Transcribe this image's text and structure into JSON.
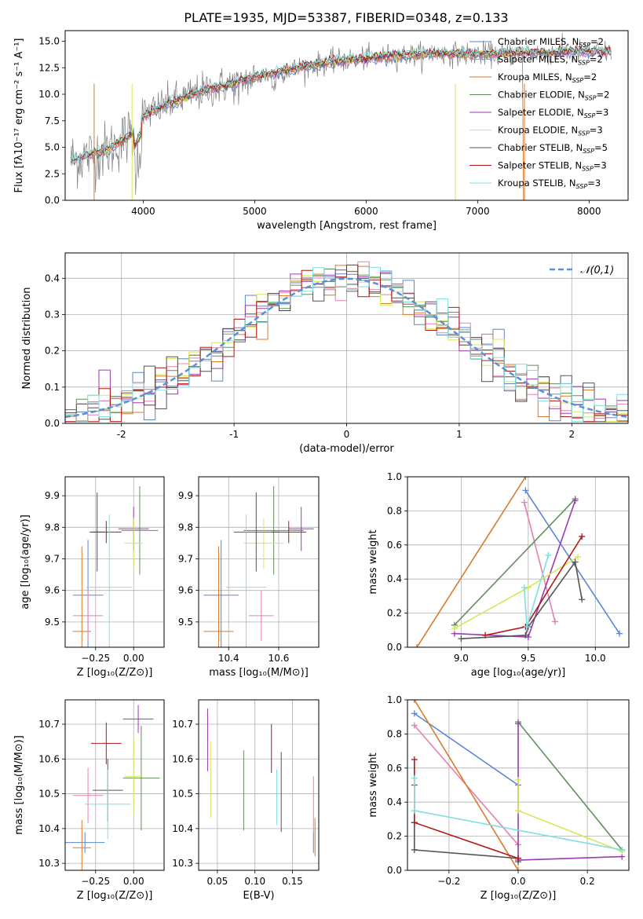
{
  "title": "PLATE=1935, MJD=53387, FIBERID=0348, z=0.133",
  "colors": {
    "Chabrier MILES": "#5b86d6",
    "Salpeter MILES": "#e87fb2",
    "Kroupa MILES": "#d97b2a",
    "Chabrier ELODIE": "#5f8f5a",
    "Salpeter ELODIE": "#9a3bb0",
    "Kroupa ELODIE": "#d4e85a",
    "Chabrier STELIB": "#555555",
    "Salpeter STELIB": "#b01818",
    "Kroupa STELIB": "#7fdede",
    "data": "#808080",
    "normal": "#5b8fd6"
  },
  "legend": [
    {
      "name": "Chabrier MILES",
      "prefix": "Chabrier MILES, N",
      "sub": "SSP",
      "suffix": "=2"
    },
    {
      "name": "Salpeter MILES",
      "prefix": "Salpeter MILES, N",
      "sub": "SSP",
      "suffix": "=2"
    },
    {
      "name": "Kroupa MILES",
      "prefix": "Kroupa MILES, N",
      "sub": "SSP",
      "suffix": "=2"
    },
    {
      "name": "Chabrier ELODIE",
      "prefix": "Chabrier ELODIE, N",
      "sub": "SSP",
      "suffix": "=2"
    },
    {
      "name": "Salpeter ELODIE",
      "prefix": "Salpeter ELODIE, N",
      "sub": "SSP",
      "suffix": "=3"
    },
    {
      "name": "Kroupa ELODIE",
      "prefix": "Kroupa ELODIE, N",
      "sub": "SSP",
      "suffix": "=3"
    },
    {
      "name": "Chabrier STELIB",
      "prefix": "Chabrier STELIB, N",
      "sub": "SSP",
      "suffix": "=5"
    },
    {
      "name": "Salpeter STELIB",
      "prefix": "Salpeter STELIB, N",
      "sub": "SSP",
      "suffix": "=3"
    },
    {
      "name": "Kroupa STELIB",
      "prefix": "Kroupa STELIB, N",
      "sub": "SSP",
      "suffix": "=3"
    }
  ],
  "chart_data": [
    {
      "id": "spectrum",
      "type": "line",
      "xlabel": "wavelength [Angstrom, rest frame]",
      "ylabel": "Flux [fλ10⁻¹⁷ erg cm⁻² s⁻¹ A⁻¹]",
      "xlim": [
        3300,
        8350
      ],
      "ylim": [
        0,
        16
      ],
      "xticks": [
        4000,
        5000,
        6000,
        7000,
        8000
      ],
      "yticks": [
        0.0,
        2.5,
        5.0,
        7.5,
        10.0,
        12.5,
        15.0
      ],
      "grid": false,
      "legend_position": "right",
      "continuum_x": [
        3350,
        3500,
        3700,
        3900,
        4000,
        4200,
        4400,
        4600,
        4800,
        5000,
        5200,
        5400,
        5600,
        5800,
        6000,
        6200,
        6400,
        6600,
        6800,
        7000,
        7200,
        7400,
        7600,
        7800,
        8000,
        8200
      ],
      "continuum_y": [
        3.8,
        4.2,
        4.8,
        6.3,
        8.0,
        9.0,
        9.8,
        10.5,
        11.0,
        11.6,
        12.1,
        12.5,
        12.9,
        13.2,
        13.4,
        13.6,
        13.7,
        13.8,
        13.8,
        13.8,
        13.8,
        13.9,
        13.9,
        14.0,
        14.0,
        14.0
      ]
    },
    {
      "id": "residuals",
      "type": "step",
      "xlabel": "(data-model)/error",
      "ylabel": "Normed distribution",
      "xlim": [
        -2.5,
        2.5
      ],
      "ylim": [
        0,
        0.47
      ],
      "xticks": [
        -2,
        -1,
        0,
        1,
        2
      ],
      "yticks": [
        0.0,
        0.1,
        0.2,
        0.3,
        0.4
      ],
      "grid": true,
      "legend_position": "top-right",
      "normal_label": "𝒩(0,1)",
      "bin_width": 0.1
    },
    {
      "id": "age_vs_Z",
      "type": "errorbar",
      "xlabel": "Z [log₁₀(Z/Z⊙)]",
      "ylabel": "age  [log₁₀(age/yr)]",
      "xlim": [
        -0.45,
        0.2
      ],
      "ylim": [
        9.42,
        9.96
      ],
      "xticks": [
        -0.25,
        0.0
      ],
      "xticklabels": [
        "−0.25",
        "0.00"
      ],
      "yticks": [
        9.5,
        9.6,
        9.7,
        9.8,
        9.9
      ],
      "grid": true,
      "points": [
        {
          "name": "Chabrier MILES",
          "x": -0.3,
          "y": 9.585,
          "xerr": 0.1,
          "yerr": 0.175
        },
        {
          "name": "Salpeter MILES",
          "x": -0.3,
          "y": 9.52,
          "xerr": 0.1,
          "yerr": 0.08
        },
        {
          "name": "Kroupa MILES",
          "x": -0.34,
          "y": 9.47,
          "xerr": 0.06,
          "yerr": 0.27
        },
        {
          "name": "Chabrier ELODIE",
          "x": 0.04,
          "y": 9.79,
          "xerr": 0.12,
          "yerr": 0.14
        },
        {
          "name": "Salpeter ELODIE",
          "x": 0.0,
          "y": 9.795,
          "xerr": 0.1,
          "yerr": 0.07
        },
        {
          "name": "Kroupa ELODIE",
          "x": 0.0,
          "y": 9.75,
          "xerr": 0.06,
          "yerr": 0.08
        },
        {
          "name": "Chabrier STELIB",
          "x": -0.24,
          "y": 9.785,
          "xerr": 0.05,
          "yerr": 0.125
        },
        {
          "name": "Salpeter STELIB",
          "x": -0.18,
          "y": 9.785,
          "xerr": 0.1,
          "yerr": 0.035
        },
        {
          "name": "Kroupa STELIB",
          "x": -0.16,
          "y": 9.61,
          "xerr": 0.15,
          "yerr": 0.23
        }
      ]
    },
    {
      "id": "age_vs_mass",
      "type": "errorbar",
      "xlabel": "mass [log₁₀(M/M⊙)]",
      "ylabel": "",
      "xlim": [
        10.28,
        10.76
      ],
      "ylim": [
        9.42,
        9.96
      ],
      "xticks": [
        10.4,
        10.6
      ],
      "yticks": [
        9.5,
        9.6,
        9.7,
        9.8,
        9.9
      ],
      "grid": true,
      "points": [
        {
          "name": "Chabrier MILES",
          "x": 10.37,
          "y": 9.585,
          "xerr": 0.07,
          "yerr": 0.175
        },
        {
          "name": "Salpeter MILES",
          "x": 10.53,
          "y": 9.52,
          "xerr": 0.05,
          "yerr": 0.08
        },
        {
          "name": "Kroupa MILES",
          "x": 10.36,
          "y": 9.47,
          "xerr": 0.06,
          "yerr": 0.27
        },
        {
          "name": "Chabrier ELODIE",
          "x": 10.58,
          "y": 9.79,
          "xerr": 0.12,
          "yerr": 0.14
        },
        {
          "name": "Salpeter ELODIE",
          "x": 10.69,
          "y": 9.795,
          "xerr": 0.05,
          "yerr": 0.07
        },
        {
          "name": "Kroupa ELODIE",
          "x": 10.54,
          "y": 9.75,
          "xerr": 0.08,
          "yerr": 0.08
        },
        {
          "name": "Chabrier STELIB",
          "x": 10.51,
          "y": 9.785,
          "xerr": 0.09,
          "yerr": 0.125
        },
        {
          "name": "Salpeter STELIB",
          "x": 10.64,
          "y": 9.785,
          "xerr": 0.07,
          "yerr": 0.035
        },
        {
          "name": "Kroupa STELIB",
          "x": 10.47,
          "y": 9.61,
          "xerr": 0.08,
          "yerr": 0.23
        }
      ]
    },
    {
      "id": "mass_weight_vs_age",
      "type": "line",
      "xlabel": "age  [log₁₀(age/yr)]",
      "ylabel": "mass weight",
      "xlim": [
        8.6,
        10.25
      ],
      "ylim": [
        0,
        1.0
      ],
      "xticks": [
        9.0,
        9.5,
        10.0
      ],
      "yticks": [
        0.0,
        0.2,
        0.4,
        0.6,
        0.8,
        1.0
      ],
      "grid": true,
      "series": [
        {
          "name": "Chabrier MILES",
          "x": [
            9.48,
            10.18
          ],
          "y": [
            0.92,
            0.08
          ]
        },
        {
          "name": "Salpeter MILES",
          "x": [
            9.47,
            9.7
          ],
          "y": [
            0.85,
            0.15
          ]
        },
        {
          "name": "Kroupa MILES",
          "x": [
            8.67,
            9.48
          ],
          "y": [
            0.0,
            1.0
          ]
        },
        {
          "name": "Chabrier ELODIE",
          "x": [
            8.95,
            9.85
          ],
          "y": [
            0.13,
            0.87
          ]
        },
        {
          "name": "Salpeter ELODIE",
          "x": [
            8.95,
            9.5,
            9.85
          ],
          "y": [
            0.08,
            0.06,
            0.86
          ]
        },
        {
          "name": "Kroupa ELODIE",
          "x": [
            8.95,
            9.5,
            9.87
          ],
          "y": [
            0.11,
            0.35,
            0.53
          ]
        },
        {
          "name": "Chabrier STELIB",
          "x": [
            9.0,
            9.48,
            9.5,
            9.85,
            9.9
          ],
          "y": [
            0.05,
            0.07,
            0.12,
            0.5,
            0.28
          ]
        },
        {
          "name": "Salpeter STELIB",
          "x": [
            9.18,
            9.48,
            9.9
          ],
          "y": [
            0.07,
            0.12,
            0.65
          ]
        },
        {
          "name": "Kroupa STELIB",
          "x": [
            9.47,
            9.49,
            9.65
          ],
          "y": [
            0.35,
            0.12,
            0.54
          ]
        }
      ]
    },
    {
      "id": "mass_vs_Z",
      "type": "errorbar",
      "xlabel": "Z [log₁₀(Z/Z⊙)]",
      "ylabel": "mass [log₁₀(M/M⊙)]",
      "xlim": [
        -0.45,
        0.2
      ],
      "ylim": [
        10.28,
        10.77
      ],
      "xticks": [
        -0.25,
        0.0
      ],
      "xticklabels": [
        "−0.25",
        "0.00"
      ],
      "yticks": [
        10.3,
        10.4,
        10.5,
        10.6,
        10.7
      ],
      "grid": true,
      "points": [
        {
          "name": "Chabrier MILES",
          "x": -0.32,
          "y": 10.36,
          "xerr": 0.13,
          "yerr": 0.03
        },
        {
          "name": "Salpeter MILES",
          "x": -0.3,
          "y": 10.495,
          "xerr": 0.1,
          "yerr": 0.08
        },
        {
          "name": "Kroupa MILES",
          "x": -0.34,
          "y": 10.345,
          "xerr": 0.06,
          "yerr": 0.08
        },
        {
          "name": "Chabrier ELODIE",
          "x": 0.05,
          "y": 10.545,
          "xerr": 0.12,
          "yerr": 0.15
        },
        {
          "name": "Salpeter ELODIE",
          "x": 0.03,
          "y": 10.715,
          "xerr": 0.1,
          "yerr": 0.04
        },
        {
          "name": "Kroupa ELODIE",
          "x": 0.0,
          "y": 10.55,
          "xerr": 0.06,
          "yerr": 0.11
        },
        {
          "name": "Chabrier STELIB",
          "x": -0.17,
          "y": 10.51,
          "xerr": 0.1,
          "yerr": 0.09
        },
        {
          "name": "Salpeter STELIB",
          "x": -0.18,
          "y": 10.645,
          "xerr": 0.1,
          "yerr": 0.06
        },
        {
          "name": "Kroupa STELIB",
          "x": -0.17,
          "y": 10.47,
          "xerr": 0.15,
          "yerr": 0.1
        }
      ]
    },
    {
      "id": "mass_vs_EBV",
      "type": "errorbar",
      "xlabel": "E(B-V)",
      "ylabel": "",
      "xlim": [
        0.025,
        0.185
      ],
      "ylim": [
        10.28,
        10.77
      ],
      "xticks": [
        0.05,
        0.1,
        0.15
      ],
      "xticklabels": [
        "0.05",
        "0.10",
        "0.15"
      ],
      "yticks": [
        10.3,
        10.4,
        10.5,
        10.6,
        10.7
      ],
      "grid": true,
      "points": [
        {
          "name": "Chabrier MILES",
          "x": 0.178,
          "y": 10.36,
          "xerr": 0.0,
          "yerr": 0.03
        },
        {
          "name": "Salpeter MILES",
          "x": 0.178,
          "y": 10.47,
          "xerr": 0.0,
          "yerr": 0.08
        },
        {
          "name": "Kroupa MILES",
          "x": 0.18,
          "y": 10.375,
          "xerr": 0.0,
          "yerr": 0.055
        },
        {
          "name": "Chabrier ELODIE",
          "x": 0.085,
          "y": 10.51,
          "xerr": 0.0,
          "yerr": 0.115
        },
        {
          "name": "Salpeter ELODIE",
          "x": 0.037,
          "y": 10.655,
          "xerr": 0.0,
          "yerr": 0.09
        },
        {
          "name": "Kroupa ELODIE",
          "x": 0.041,
          "y": 10.54,
          "xerr": 0.0,
          "yerr": 0.11
        },
        {
          "name": "Chabrier STELIB",
          "x": 0.135,
          "y": 10.505,
          "xerr": 0.0,
          "yerr": 0.115
        },
        {
          "name": "Salpeter STELIB",
          "x": 0.122,
          "y": 10.63,
          "xerr": 0.0,
          "yerr": 0.07
        },
        {
          "name": "Kroupa STELIB",
          "x": 0.129,
          "y": 10.49,
          "xerr": 0.0,
          "yerr": 0.08
        }
      ]
    },
    {
      "id": "mass_weight_vs_Z",
      "type": "line",
      "xlabel": "Z [log₁₀(Z/Z⊙)]",
      "ylabel": "mass weight",
      "xlim": [
        -0.32,
        0.32
      ],
      "ylim": [
        0,
        1.0
      ],
      "xticks": [
        -0.2,
        0.0,
        0.2
      ],
      "xticklabels": [
        "−0.2",
        "0.0",
        "0.2"
      ],
      "yticks": [
        0.0,
        0.2,
        0.4,
        0.6,
        0.8,
        1.0
      ],
      "grid": true,
      "series": [
        {
          "name": "Chabrier MILES",
          "x": [
            -0.3,
            0.0
          ],
          "y": [
            0.92,
            0.5
          ]
        },
        {
          "name": "Salpeter MILES",
          "x": [
            -0.3,
            0.0
          ],
          "y": [
            0.85,
            0.15
          ]
        },
        {
          "name": "Kroupa MILES",
          "x": [
            -0.3,
            0.0
          ],
          "y": [
            1.0,
            0.0
          ]
        },
        {
          "name": "Chabrier ELODIE",
          "x": [
            0.0,
            0.3
          ],
          "y": [
            0.87,
            0.12
          ]
        },
        {
          "name": "Salpeter ELODIE",
          "x": [
            0.0,
            0.0,
            0.3
          ],
          "y": [
            0.86,
            0.06,
            0.08
          ]
        },
        {
          "name": "Kroupa ELODIE",
          "x": [
            0.0,
            0.0,
            0.3
          ],
          "y": [
            0.53,
            0.35,
            0.11
          ]
        },
        {
          "name": "Chabrier STELIB",
          "x": [
            -0.3,
            -0.3,
            -0.3,
            0.0,
            0.0
          ],
          "y": [
            0.5,
            0.28,
            0.12,
            0.07,
            0.05
          ]
        },
        {
          "name": "Salpeter STELIB",
          "x": [
            -0.3,
            -0.3,
            0.0
          ],
          "y": [
            0.65,
            0.28,
            0.07
          ]
        },
        {
          "name": "Kroupa STELIB",
          "x": [
            -0.3,
            -0.3,
            0.3
          ],
          "y": [
            0.54,
            0.35,
            0.12
          ]
        }
      ]
    }
  ]
}
